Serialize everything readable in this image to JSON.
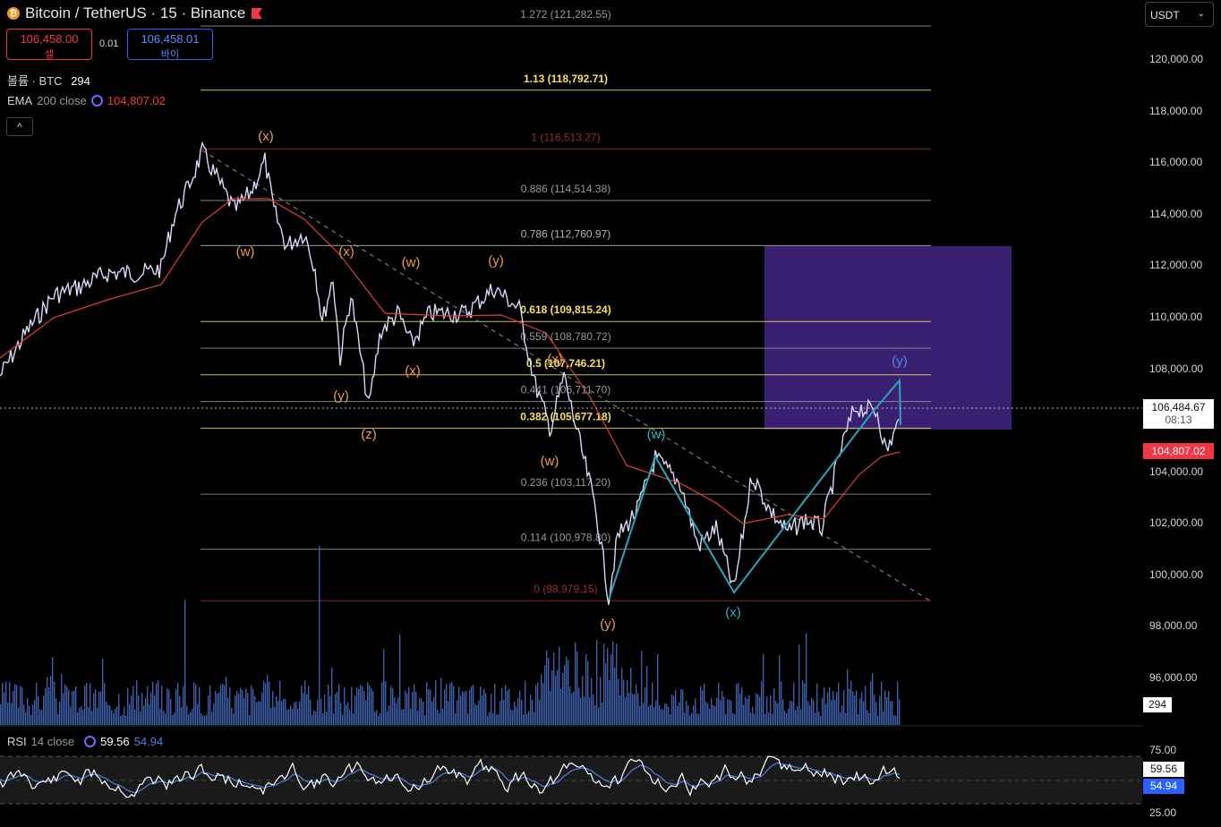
{
  "header": {
    "symbol_title": "Bitcoin / TetherUS · 15 · Binance",
    "sell": {
      "price": "106,458.00",
      "label": "셀"
    },
    "buy": {
      "price": "106,458.01",
      "label": "바이"
    },
    "spread": "0.01",
    "volume_label": "볼륨 · BTC",
    "volume_value": "294",
    "ema_label": "EMA",
    "ema_params": "200 close",
    "ema_value": "104,807.02",
    "collapse_glyph": "^"
  },
  "currency_select": {
    "value": "USDT"
  },
  "price_axis": {
    "labels": [
      "120,000.00",
      "118,000.00",
      "116,000.00",
      "114,000.00",
      "112,000.00",
      "110,000.00",
      "108,000.00",
      "104,000.00",
      "102,000.00",
      "100,000.00",
      "98,000.00",
      "96,000.00"
    ],
    "last_price": "106,484.67",
    "countdown": "08:13",
    "ema_tag": "104,807.02",
    "volume_tag": "294"
  },
  "rsi": {
    "label": "RSI",
    "params": "14 close",
    "value": "59.56",
    "ma_value": "54.94",
    "axis": [
      "75.00",
      "25.00"
    ]
  },
  "fib_levels": [
    {
      "label": "1.272 (121,282.55)",
      "price": 121282.55,
      "color": "#9598a1",
      "bold": false
    },
    {
      "label": "1.13 (118,792.71)",
      "price": 118792.71,
      "color": "#f5e05a",
      "bold": true
    },
    {
      "label": "1 (116,513.27)",
      "price": 116513.27,
      "color": "#9c2b2b",
      "bold": false
    },
    {
      "label": "0.886 (114,514.38)",
      "price": 114514.38,
      "color": "#9598a1",
      "bold": false
    },
    {
      "label": "0.786 (112,760.97)",
      "price": 112760.97,
      "color": "#b2b5be",
      "bold": false
    },
    {
      "label": "0.618 (109,815.24)",
      "price": 109815.24,
      "color": "#f5e05a",
      "bold": true
    },
    {
      "label": "0.559 (108,780.72)",
      "price": 108780.72,
      "color": "#9598a1",
      "bold": false
    },
    {
      "label": "0.5 (107,746.21)",
      "price": 107746.21,
      "color": "#f5e05a",
      "bold": true
    },
    {
      "label": "0.441 (106,711.70)",
      "price": 106711.7,
      "color": "#9598a1",
      "bold": false
    },
    {
      "label": "0.382 (105,677.18)",
      "price": 105677.18,
      "color": "#f5e05a",
      "bold": true
    },
    {
      "label": "0.236 (103,117.20)",
      "price": 103117.2,
      "color": "#9598a1",
      "bold": false
    },
    {
      "label": "0.114 (100,978.80)",
      "price": 100978.8,
      "color": "#9598a1",
      "bold": false
    },
    {
      "label": "0 (98,979.15)",
      "price": 98979.15,
      "color": "#9c2b2b",
      "bold": false
    }
  ],
  "wave_labels": [
    {
      "text": "(x)",
      "color": "#f0a030"
    },
    {
      "text": "(w)",
      "color": "#f0a030"
    },
    {
      "text": "(x)",
      "color": "#f0a030"
    },
    {
      "text": "(w)",
      "color": "#f0a030"
    },
    {
      "text": "(y)",
      "color": "#f0a030"
    },
    {
      "text": "(y)",
      "color": "#f0a030"
    },
    {
      "text": "(x)",
      "color": "#f0a030"
    },
    {
      "text": "(z)",
      "color": "#f0a030"
    },
    {
      "text": "(x)",
      "color": "#f0a030"
    },
    {
      "text": "(w)",
      "color": "#f0a030"
    },
    {
      "text": "(y)",
      "color": "#f0a030"
    },
    {
      "text": "(w)",
      "color": "#2ab0c8"
    },
    {
      "text": "(x)",
      "color": "#2ab0c8"
    },
    {
      "text": "(y)",
      "color": "#4c8ef0"
    }
  ],
  "colors": {
    "candle": "#d7d9f7",
    "ema": "#e03c3c",
    "volume": "#3e5fa8",
    "zone": "#3a2070",
    "wave_line": "#2aa6bc",
    "rsi": "#ffffff",
    "rsi_ma": "#4f7ee8"
  }
}
